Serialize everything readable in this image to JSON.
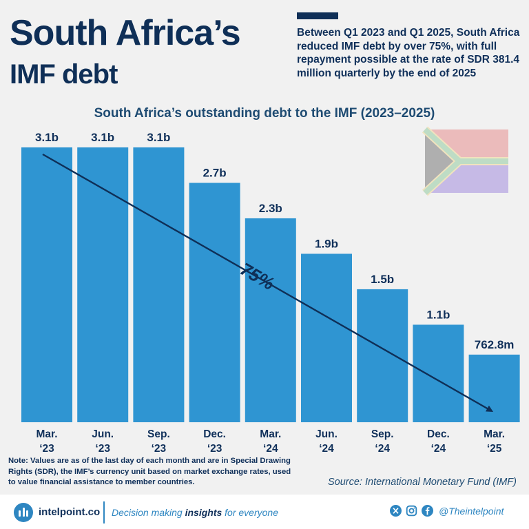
{
  "header": {
    "title_line1": "South Africa’s",
    "title_line2": "IMF debt",
    "summary": "Between Q1 2023 and Q1 2025, South Africa reduced IMF debt by over 75%, with full repayment possible at the rate of SDR 381.4 million quarterly by the end of 2025"
  },
  "chart_data": {
    "type": "bar",
    "title": "South Africa’s outstanding debt to the IMF (2023–2025)",
    "categories": [
      [
        "Mar.",
        "‘23"
      ],
      [
        "Jun.",
        "‘23"
      ],
      [
        "Sep.",
        "‘23"
      ],
      [
        "Dec.",
        "‘23"
      ],
      [
        "Mar.",
        "‘24"
      ],
      [
        "Jun.",
        "‘24"
      ],
      [
        "Sep.",
        "‘24"
      ],
      [
        "Dec.",
        "‘24"
      ],
      [
        "Mar.",
        "‘25"
      ]
    ],
    "values": [
      3.1,
      3.1,
      3.1,
      2.7,
      2.3,
      1.9,
      1.5,
      1.1,
      0.7628
    ],
    "value_labels": [
      "3.1b",
      "3.1b",
      "3.1b",
      "2.7b",
      "2.3b",
      "1.9b",
      "1.5b",
      "1.1b",
      "762.8m"
    ],
    "unit": "SDR billions",
    "ylim": [
      0,
      3.1
    ],
    "trend_annotation": "75%",
    "bar_color": "#2f95d2",
    "grid": false,
    "legend": "none"
  },
  "note": "Note: Values are as of the last day of each month and are in Special Drawing Rights (SDR), the IMF’s currency unit based on market exchange rates, used to value financial assistance to member countries.",
  "source": "Source: International Monetary Fund (IMF)",
  "footer": {
    "brand": "intelpoint.co",
    "tagline_before": "Decision making ",
    "tagline_bold": "insights",
    "tagline_after": " for everyone",
    "handle": "@Theintelpoint"
  },
  "colors": {
    "navy": "#0f2f57",
    "accent": "#2e86c1",
    "bar": "#2f95d2"
  }
}
